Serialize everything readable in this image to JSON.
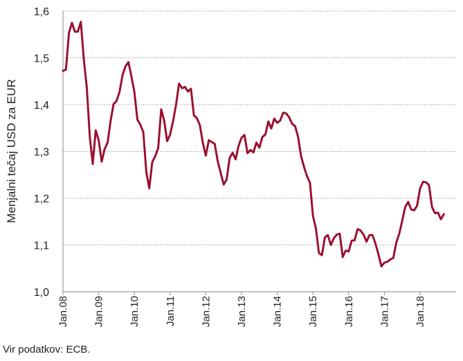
{
  "chart_data": {
    "type": "line",
    "title": "",
    "xlabel": "",
    "ylabel": "Menjalni tečaj USD za EUR",
    "ylim": [
      1.0,
      1.6
    ],
    "y_ticks": [
      "1,0",
      "1,1",
      "1,2",
      "1,3",
      "1,4",
      "1,5",
      "1,6"
    ],
    "x_ticks": [
      "Jan.08",
      "Jan.09",
      "Jan.10",
      "Jan.11",
      "Jan.12",
      "Jan.13",
      "Jan.14",
      "Jan.15",
      "Jan.16",
      "Jan.17",
      "Jan.18"
    ],
    "grid": "horizontal dotted",
    "line_color": "#9b1030",
    "series": [
      {
        "name": "",
        "x": [
          "2008-01",
          "2008-02",
          "2008-03",
          "2008-04",
          "2008-05",
          "2008-06",
          "2008-07",
          "2008-08",
          "2008-09",
          "2008-10",
          "2008-11",
          "2008-12",
          "2009-01",
          "2009-02",
          "2009-03",
          "2009-04",
          "2009-05",
          "2009-06",
          "2009-07",
          "2009-08",
          "2009-09",
          "2009-10",
          "2009-11",
          "2009-12",
          "2010-01",
          "2010-02",
          "2010-03",
          "2010-04",
          "2010-05",
          "2010-06",
          "2010-07",
          "2010-08",
          "2010-09",
          "2010-10",
          "2010-11",
          "2010-12",
          "2011-01",
          "2011-02",
          "2011-03",
          "2011-04",
          "2011-05",
          "2011-06",
          "2011-07",
          "2011-08",
          "2011-09",
          "2011-10",
          "2011-11",
          "2011-12",
          "2012-01",
          "2012-02",
          "2012-03",
          "2012-04",
          "2012-05",
          "2012-06",
          "2012-07",
          "2012-08",
          "2012-09",
          "2012-10",
          "2012-11",
          "2012-12",
          "2013-01",
          "2013-02",
          "2013-03",
          "2013-04",
          "2013-05",
          "2013-06",
          "2013-07",
          "2013-08",
          "2013-09",
          "2013-10",
          "2013-11",
          "2013-12",
          "2014-01",
          "2014-02",
          "2014-03",
          "2014-04",
          "2014-05",
          "2014-06",
          "2014-07",
          "2014-08",
          "2014-09",
          "2014-10",
          "2014-11",
          "2014-12",
          "2015-01",
          "2015-02",
          "2015-03",
          "2015-04",
          "2015-05",
          "2015-06",
          "2015-07",
          "2015-08",
          "2015-09",
          "2015-10",
          "2015-11",
          "2015-12",
          "2016-01",
          "2016-02",
          "2016-03",
          "2016-04",
          "2016-05",
          "2016-06",
          "2016-07",
          "2016-08",
          "2016-09",
          "2016-10",
          "2016-11",
          "2016-12",
          "2017-01",
          "2017-02",
          "2017-03",
          "2017-04",
          "2017-05",
          "2017-06",
          "2017-07",
          "2017-08",
          "2017-09",
          "2017-10",
          "2017-11",
          "2017-12",
          "2018-01",
          "2018-02",
          "2018-03",
          "2018-04",
          "2018-05",
          "2018-06",
          "2018-07",
          "2018-08",
          "2018-09"
        ],
        "values": [
          1.472,
          1.475,
          1.553,
          1.575,
          1.556,
          1.556,
          1.577,
          1.497,
          1.437,
          1.332,
          1.273,
          1.345,
          1.324,
          1.278,
          1.305,
          1.319,
          1.365,
          1.401,
          1.408,
          1.427,
          1.463,
          1.482,
          1.491,
          1.46,
          1.427,
          1.368,
          1.357,
          1.341,
          1.256,
          1.221,
          1.277,
          1.29,
          1.307,
          1.39,
          1.366,
          1.322,
          1.336,
          1.365,
          1.4,
          1.445,
          1.435,
          1.438,
          1.428,
          1.434,
          1.377,
          1.371,
          1.356,
          1.318,
          1.291,
          1.324,
          1.32,
          1.316,
          1.279,
          1.254,
          1.229,
          1.24,
          1.286,
          1.297,
          1.283,
          1.312,
          1.329,
          1.335,
          1.296,
          1.303,
          1.298,
          1.319,
          1.308,
          1.331,
          1.336,
          1.364,
          1.349,
          1.37,
          1.361,
          1.366,
          1.383,
          1.381,
          1.373,
          1.359,
          1.354,
          1.331,
          1.29,
          1.267,
          1.247,
          1.233,
          1.162,
          1.135,
          1.083,
          1.078,
          1.116,
          1.121,
          1.1,
          1.114,
          1.122,
          1.124,
          1.074,
          1.088,
          1.086,
          1.109,
          1.11,
          1.134,
          1.131,
          1.122,
          1.107,
          1.121,
          1.121,
          1.103,
          1.08,
          1.054,
          1.062,
          1.064,
          1.069,
          1.072,
          1.105,
          1.124,
          1.152,
          1.181,
          1.192,
          1.176,
          1.174,
          1.184,
          1.221,
          1.235,
          1.234,
          1.228,
          1.181,
          1.168,
          1.169,
          1.155,
          1.166
        ]
      }
    ]
  },
  "source": "Vir podatkov: ECB."
}
